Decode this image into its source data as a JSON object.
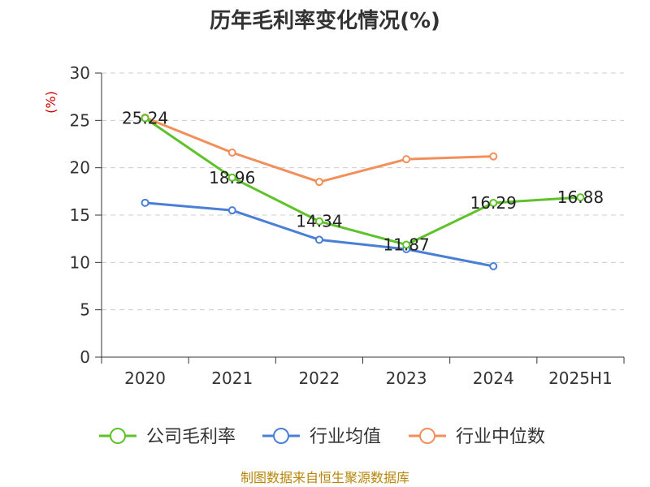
{
  "chart_data": {
    "type": "line",
    "title": "历年毛利率变化情况(%)",
    "ylabel": "(%)",
    "xlabel": "",
    "categories": [
      "2020",
      "2021",
      "2022",
      "2023",
      "2024",
      "2025H1"
    ],
    "ylim": [
      0,
      30
    ],
    "yticks": [
      0,
      5,
      10,
      15,
      20,
      25,
      30
    ],
    "grid": true,
    "legend_position": "bottom",
    "series": [
      {
        "name": "公司毛利率",
        "color": "#5ec22a",
        "values": [
          25.24,
          18.96,
          14.34,
          11.87,
          16.29,
          16.88
        ],
        "labels": [
          "25.24",
          "18.96",
          "14.34",
          "11.87",
          "16.29",
          "16.88"
        ]
      },
      {
        "name": "行业均值",
        "color": "#4a7fd6",
        "values": [
          16.3,
          15.5,
          12.4,
          11.4,
          9.6,
          null
        ]
      },
      {
        "name": "行业中位数",
        "color": "#f28f5b",
        "values": [
          25.3,
          21.6,
          18.5,
          20.9,
          21.2,
          null
        ]
      }
    ]
  },
  "source": "制图数据来自恒生聚源数据库",
  "colors": {
    "ylabel": "#cc0000",
    "source": "#b8860b",
    "grid": "#cccccc",
    "axis": "#333333"
  }
}
